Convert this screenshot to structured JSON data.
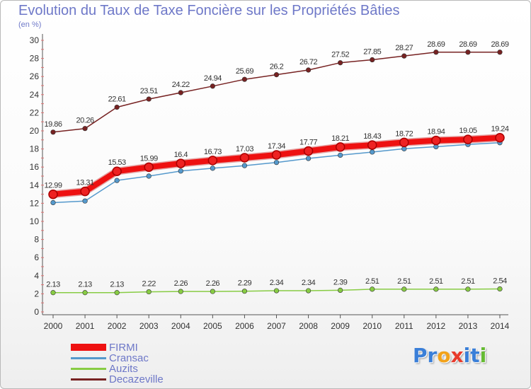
{
  "title": "Evolution du Taux de Taxe Foncière sur les Propriétés Bâties",
  "subtitle": "(en %)",
  "colors": {
    "title": "#6e78c8",
    "axis": "#555555",
    "grid_tick": "#e07070"
  },
  "logo": {
    "text": "Proxiti",
    "letters": [
      "P",
      "r",
      "o",
      "x",
      "i",
      "t",
      "i"
    ],
    "letter_colors": [
      "#3a7fd8",
      "#3a7fd8",
      "#f2a21a",
      "#e83a2b",
      "#3a7fd8",
      "#3a7fd8",
      "#66bb33"
    ]
  },
  "chart_data": {
    "type": "line",
    "title": "Evolution du Taux de Taxe Foncière sur les Propriétés Bâties",
    "ylabel": "(en %)",
    "xlabel": "",
    "x": [
      "2000",
      "2001",
      "2002",
      "2003",
      "2004",
      "2005",
      "2006",
      "2007",
      "2008",
      "2009",
      "2010",
      "2011",
      "2012",
      "2013",
      "2014"
    ],
    "ylim": [
      0,
      30
    ],
    "yticks": [
      0,
      2,
      4,
      6,
      8,
      10,
      12,
      14,
      16,
      18,
      20,
      22,
      24,
      26,
      28,
      30
    ],
    "grid": false,
    "legend_position": "bottom-left",
    "series": [
      {
        "name": "FIRMI",
        "color": "#ee1111",
        "thick": true,
        "values": [
          12.99,
          13.31,
          15.53,
          15.99,
          16.4,
          16.73,
          17.03,
          17.34,
          17.77,
          18.21,
          18.43,
          18.72,
          18.94,
          19.05,
          19.24
        ],
        "labels": [
          "12.99",
          "13.31",
          "15.53",
          "15.99",
          "16.4",
          "16.73",
          "17.03",
          "17.34",
          "17.77",
          "18.21",
          "18.43",
          "18.72",
          "18.94",
          "19.05",
          "19.24"
        ]
      },
      {
        "name": "Cransac",
        "color": "#5599cc",
        "thick": false,
        "values": [
          12.07,
          12.25,
          14.52,
          15.0,
          15.56,
          15.87,
          16.16,
          16.51,
          16.95,
          17.31,
          17.66,
          18.02,
          18.25,
          18.49,
          18.69
        ],
        "labels": [
          "",
          "",
          "",
          "",
          "",
          "",
          "",
          "",
          "",
          "",
          "",
          "",
          "",
          "",
          ""
        ]
      },
      {
        "name": "Auzits",
        "color": "#88cc44",
        "thick": false,
        "values": [
          2.13,
          2.13,
          2.13,
          2.22,
          2.26,
          2.26,
          2.29,
          2.34,
          2.34,
          2.39,
          2.51,
          2.51,
          2.51,
          2.51,
          2.54
        ],
        "labels": [
          "2.13",
          "2.13",
          "2.13",
          "2.22",
          "2.26",
          "2.26",
          "2.29",
          "2.34",
          "2.34",
          "2.39",
          "2.51",
          "2.51",
          "2.51",
          "2.51",
          "2.54"
        ]
      },
      {
        "name": "Decazeville",
        "color": "#772222",
        "thick": false,
        "values": [
          19.86,
          20.26,
          22.61,
          23.51,
          24.22,
          24.94,
          25.69,
          26.2,
          26.72,
          27.52,
          27.85,
          28.27,
          28.69,
          28.69,
          28.69
        ],
        "labels": [
          "19.86",
          "20.26",
          "22.61",
          "23.51",
          "24.22",
          "24.94",
          "25.69",
          "26.2",
          "26.72",
          "27.52",
          "27.85",
          "28.27",
          "28.69",
          "28.69",
          "28.69"
        ]
      }
    ]
  }
}
